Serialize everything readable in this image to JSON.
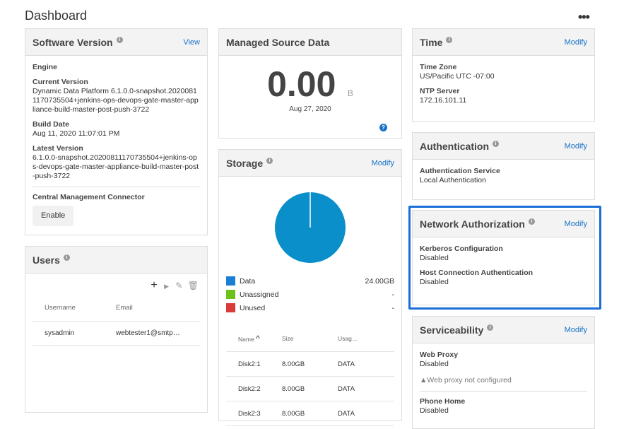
{
  "page": {
    "title": "Dashboard",
    "more_icon": "more-horizontal-icon"
  },
  "software": {
    "title": "Software Version",
    "action": "View",
    "engine": "Engine",
    "current_label": "Current Version",
    "current_value": "Dynamic Data Platform 6.1.0.0-snapshot.20200811170735504+jenkins-ops-devops-gate-master-appliance-build-master-post-push-3722",
    "build_label": "Build Date",
    "build_value": "Aug 11, 2020 11:07:01 PM",
    "latest_label": "Latest Version",
    "latest_value": "6.1.0.0-snapshot.20200811170735504+jenkins-ops-devops-gate-master-appliance-build-master-post-push-3722",
    "cmc_label": "Central Management Connector",
    "enable": "Enable"
  },
  "users": {
    "title": "Users",
    "columns": [
      "Username",
      "Email"
    ],
    "rows": [
      [
        "sysadmin",
        "webtester1@smtp…"
      ]
    ]
  },
  "managed": {
    "title": "Managed Source Data",
    "value": "0.00",
    "unit": "B",
    "date": "Aug 27, 2020"
  },
  "storage": {
    "title": "Storage",
    "action": "Modify",
    "legend": [
      {
        "name": "Data",
        "value": "24.00GB",
        "color": "#1a7fd4"
      },
      {
        "name": "Unassigned",
        "value": "-",
        "color": "#6cc21b"
      },
      {
        "name": "Unused",
        "value": "-",
        "color": "#d93a3a"
      }
    ],
    "pie_color": "#0a8fcb",
    "columns": [
      "Name",
      "Size",
      "Usag…"
    ],
    "rows": [
      [
        "Disk2:1",
        "8.00GB",
        "DATA"
      ],
      [
        "Disk2:2",
        "8.00GB",
        "DATA"
      ],
      [
        "Disk2:3",
        "8.00GB",
        "DATA"
      ]
    ]
  },
  "time": {
    "title": "Time",
    "action": "Modify",
    "tz_label": "Time Zone",
    "tz_value": "US/Pacific UTC -07:00",
    "ntp_label": "NTP Server",
    "ntp_value": "172.16.101.11"
  },
  "auth": {
    "title": "Authentication",
    "action": "Modify",
    "svc_label": "Authentication Service",
    "svc_value": "Local Authentication"
  },
  "netauth": {
    "title": "Network Authorization",
    "action": "Modify",
    "kerb_label": "Kerberos Configuration",
    "kerb_value": "Disabled",
    "host_label": "Host Connection Authentication",
    "host_value": "Disabled"
  },
  "service": {
    "title": "Serviceability",
    "action": "Modify",
    "proxy_label": "Web Proxy",
    "proxy_value": "Disabled",
    "proxy_warn": "Web proxy not configured",
    "phone_label": "Phone Home",
    "phone_value": "Disabled"
  }
}
